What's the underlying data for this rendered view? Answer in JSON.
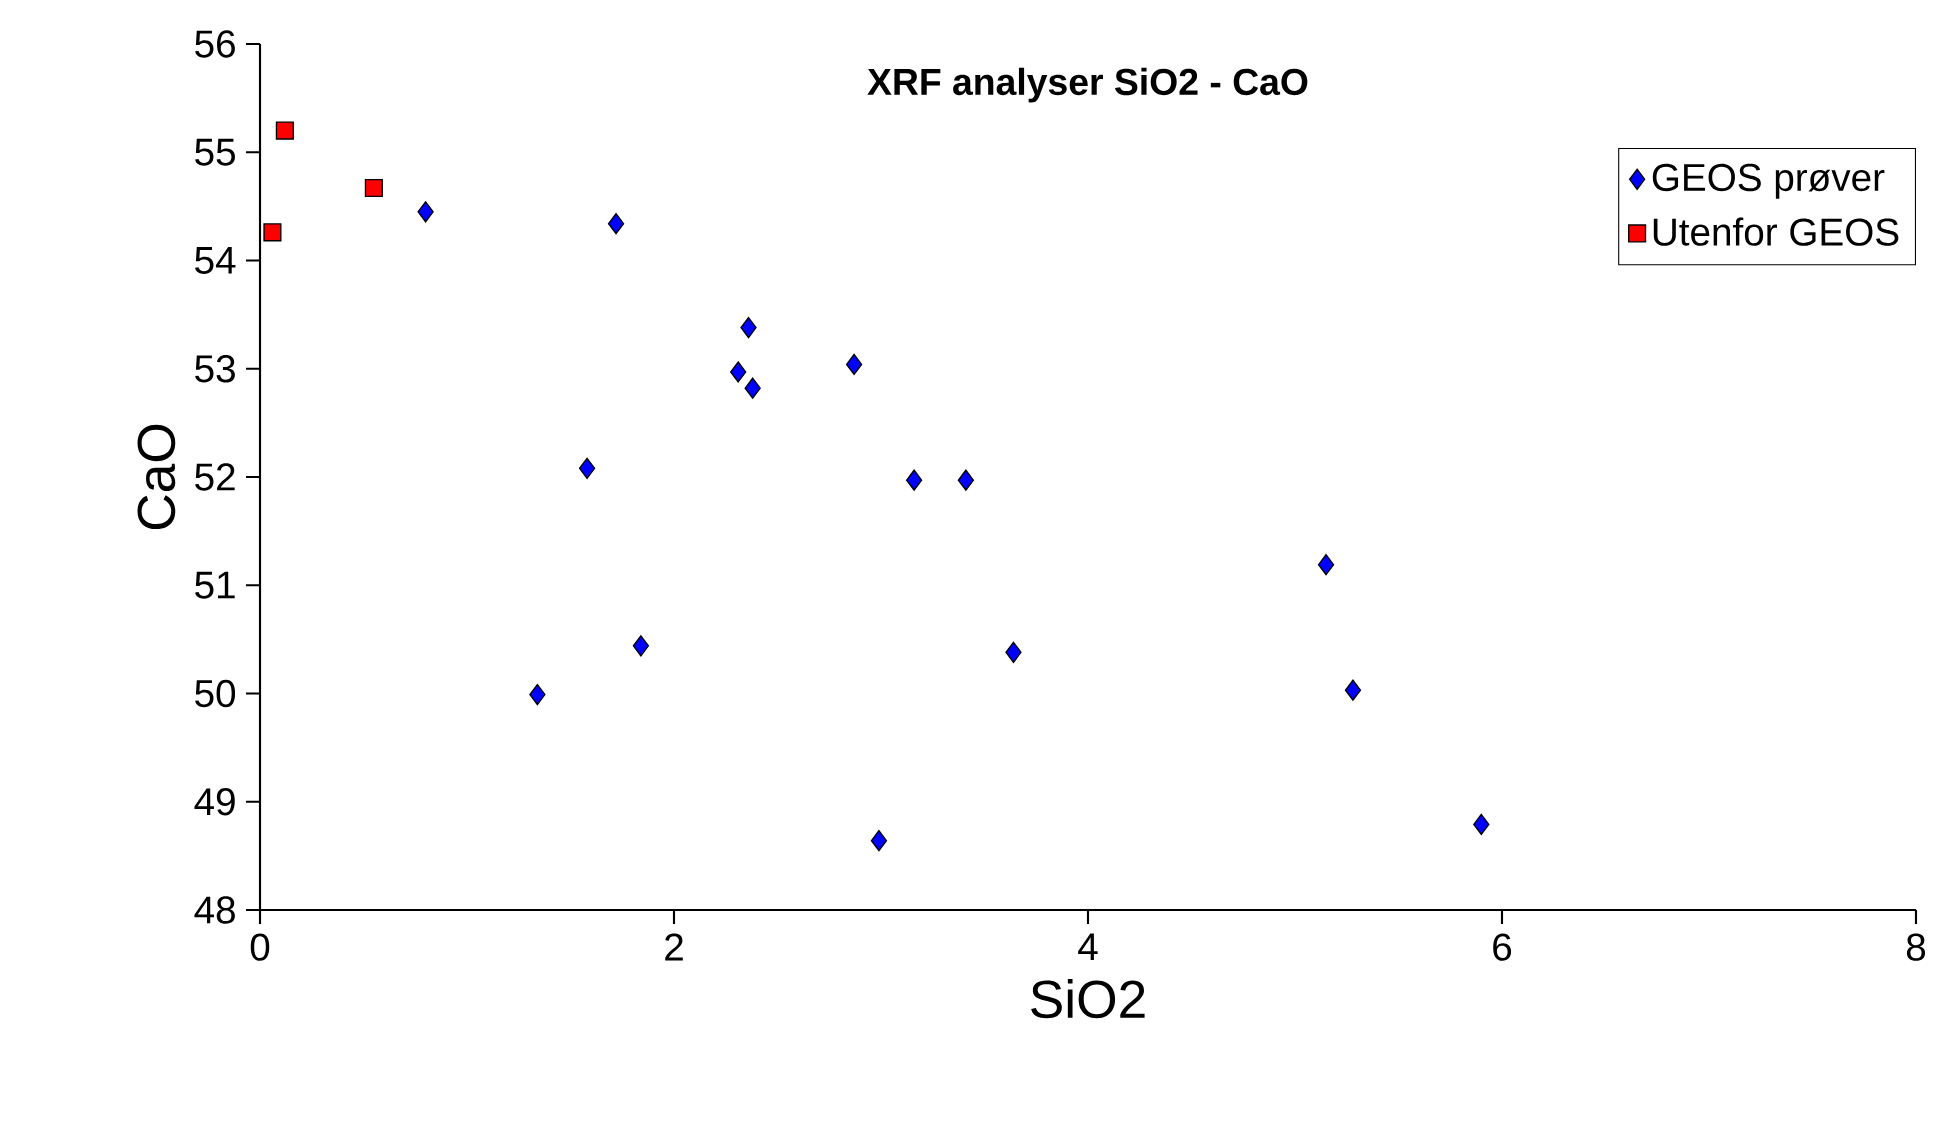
{
  "chart_data": {
    "type": "scatter",
    "title": "XRF analyser SiO2 - CaO",
    "xlabel": "SiO2",
    "ylabel": "CaO",
    "xlim": [
      0,
      8
    ],
    "ylim": [
      48,
      56
    ],
    "xticks": [
      0,
      2,
      4,
      6,
      8
    ],
    "yticks": [
      48,
      49,
      50,
      51,
      52,
      53,
      54,
      55,
      56
    ],
    "grid": false,
    "legend": "top right",
    "series": [
      {
        "name": "GEOS prøver",
        "color": "#0000ff",
        "marker": "diamond",
        "x": [
          0.8,
          1.72,
          2.36,
          2.31,
          2.38,
          2.87,
          1.58,
          3.16,
          3.41,
          1.84,
          1.34,
          3.64,
          2.99,
          5.15,
          5.28,
          5.9
        ],
        "values": [
          54.45,
          54.34,
          53.38,
          52.97,
          52.82,
          53.04,
          52.08,
          51.97,
          51.97,
          50.44,
          49.99,
          50.38,
          48.64,
          51.19,
          50.03,
          48.79
        ]
      },
      {
        "name": "Utenfor GEOS",
        "color": "#ff0000",
        "marker": "square",
        "x": [
          0.12,
          0.55,
          0.06
        ],
        "values": [
          55.2,
          54.67,
          54.26
        ]
      }
    ]
  }
}
